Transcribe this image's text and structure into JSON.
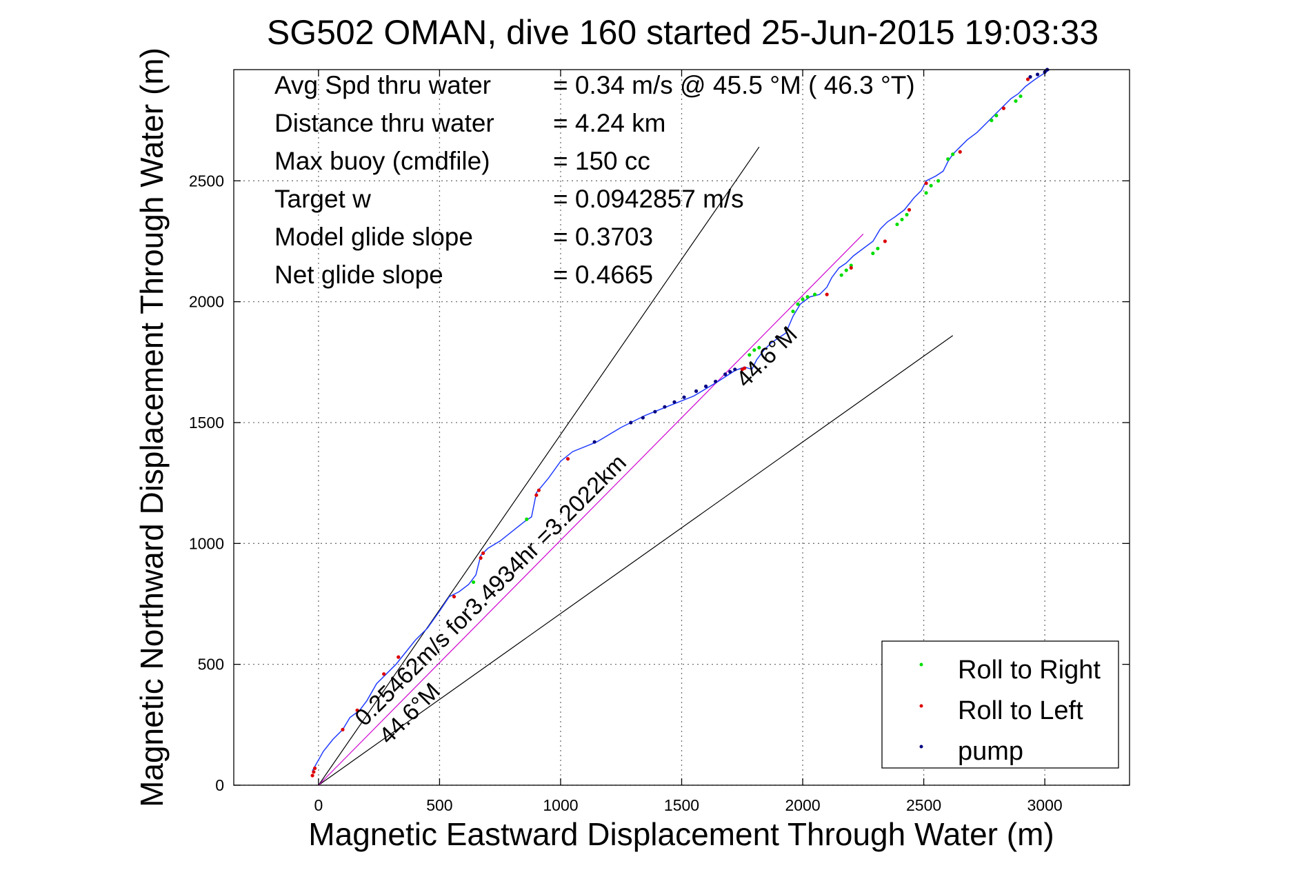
{
  "chart_data": {
    "type": "line",
    "title": "SG502 OMAN, dive 160 started 25-Jun-2015 19:03:33",
    "xlabel": "Magnetic Eastward Displacement Through Water (m)",
    "ylabel": "Magnetic Northward Displacement Through Water (m)",
    "xlim": [
      -350,
      3350
    ],
    "ylim": [
      0,
      2960
    ],
    "xticks": [
      0,
      500,
      1000,
      1500,
      2000,
      2500,
      3000
    ],
    "yticks": [
      0,
      500,
      1000,
      1500,
      2000,
      2500
    ],
    "grid": true,
    "legend_position": "bottom-right",
    "stats": [
      {
        "label": "Avg Spd thru water",
        "value": "=  0.34 m/s @  45.5 °M ( 46.3 °T)"
      },
      {
        "label": "Distance thru water",
        "value": "=  4.24 km"
      },
      {
        "label": "Max buoy (cmdfile)",
        "value": "= 150 cc"
      },
      {
        "label": "Target w",
        "value": "= 0.0942857 m/s"
      },
      {
        "label": "Model glide slope",
        "value": "= 0.3703"
      },
      {
        "label": "Net glide slope",
        "value": "= 0.4665"
      }
    ],
    "annotations": [
      {
        "text": "0.25462m/s for3.4934hr =3.2022km",
        "x": 190,
        "y": 240
      },
      {
        "text": "44.6°M",
        "x": 290,
        "y": 165
      },
      {
        "text": "44.6°M",
        "x": 1765,
        "y": 1640
      }
    ],
    "reference_lines": [
      {
        "name": "upper",
        "points": [
          [
            0,
            0
          ],
          [
            1820,
            2640
          ]
        ],
        "color": "#000000"
      },
      {
        "name": "lower",
        "points": [
          [
            0,
            0
          ],
          [
            2620,
            1860
          ]
        ],
        "color": "#000000"
      },
      {
        "name": "heading",
        "points": [
          [
            0,
            0
          ],
          [
            2250,
            2280
          ]
        ],
        "color": "#d000d0"
      }
    ],
    "track": {
      "name": "track",
      "color": "#1f3bff",
      "x": [
        -25,
        20,
        60,
        100,
        130,
        170,
        200,
        240,
        280,
        320,
        360,
        400,
        450,
        500,
        540,
        580,
        620,
        650,
        670,
        700,
        750,
        800,
        850,
        880,
        900,
        950,
        1000,
        1050,
        1150,
        1250,
        1350,
        1450,
        1550,
        1650,
        1720,
        1760,
        1790,
        1810,
        1840,
        1870,
        1900,
        1930,
        1960,
        1990,
        2030,
        2070,
        2100,
        2120,
        2150,
        2180,
        2210,
        2250,
        2290,
        2320,
        2350,
        2380,
        2420,
        2460,
        2490,
        2510,
        2550,
        2580,
        2600,
        2620,
        2650,
        2680,
        2720,
        2760,
        2790,
        2820,
        2860,
        2890,
        2920,
        2960,
        2990,
        3020
      ],
      "y": [
        60,
        140,
        190,
        230,
        280,
        310,
        350,
        420,
        460,
        500,
        550,
        600,
        650,
        720,
        780,
        800,
        830,
        870,
        950,
        980,
        1010,
        1050,
        1090,
        1110,
        1210,
        1270,
        1340,
        1380,
        1420,
        1480,
        1530,
        1570,
        1610,
        1670,
        1715,
        1730,
        1720,
        1760,
        1800,
        1830,
        1850,
        1870,
        1940,
        1990,
        2020,
        2030,
        2060,
        2100,
        2140,
        2160,
        2190,
        2220,
        2250,
        2300,
        2330,
        2350,
        2380,
        2430,
        2460,
        2500,
        2520,
        2540,
        2580,
        2610,
        2640,
        2670,
        2700,
        2740,
        2770,
        2800,
        2840,
        2860,
        2890,
        2920,
        2940,
        2960
      ]
    },
    "series": [
      {
        "name": "Roll to Right",
        "color": "#00dd00",
        "x": [
          640,
          860,
          1780,
          1800,
          1820,
          1960,
          1980,
          2000,
          2020,
          2050,
          2160,
          2180,
          2200,
          2290,
          2310,
          2390,
          2410,
          2430,
          2510,
          2530,
          2560,
          2600,
          2620,
          2780,
          2800,
          2880,
          2900
        ],
        "y": [
          840,
          1100,
          1780,
          1800,
          1810,
          1960,
          1990,
          2010,
          2020,
          2030,
          2110,
          2130,
          2150,
          2200,
          2220,
          2320,
          2340,
          2360,
          2450,
          2480,
          2500,
          2590,
          2610,
          2750,
          2770,
          2830,
          2850
        ]
      },
      {
        "name": "Roll to Left",
        "color": "#dd0000",
        "x": [
          -25,
          -20,
          -15,
          100,
          160,
          270,
          330,
          560,
          670,
          680,
          900,
          910,
          1030,
          1750,
          1760,
          2100,
          2200,
          2340,
          2440,
          2510,
          2650,
          2830,
          2930
        ],
        "y": [
          40,
          55,
          70,
          230,
          310,
          460,
          530,
          780,
          940,
          960,
          1200,
          1220,
          1350,
          1720,
          1725,
          2030,
          2140,
          2250,
          2380,
          2490,
          2620,
          2800,
          2920
        ]
      },
      {
        "name": "pump",
        "color": "#000080",
        "x": [
          1140,
          1290,
          1340,
          1390,
          1430,
          1470,
          1510,
          1560,
          1600,
          1640,
          1680,
          1700,
          1720,
          2940,
          2970,
          3000,
          3010
        ],
        "y": [
          1420,
          1500,
          1520,
          1545,
          1565,
          1585,
          1605,
          1630,
          1650,
          1670,
          1700,
          1710,
          1720,
          2930,
          2940,
          2950,
          2960
        ]
      }
    ]
  }
}
